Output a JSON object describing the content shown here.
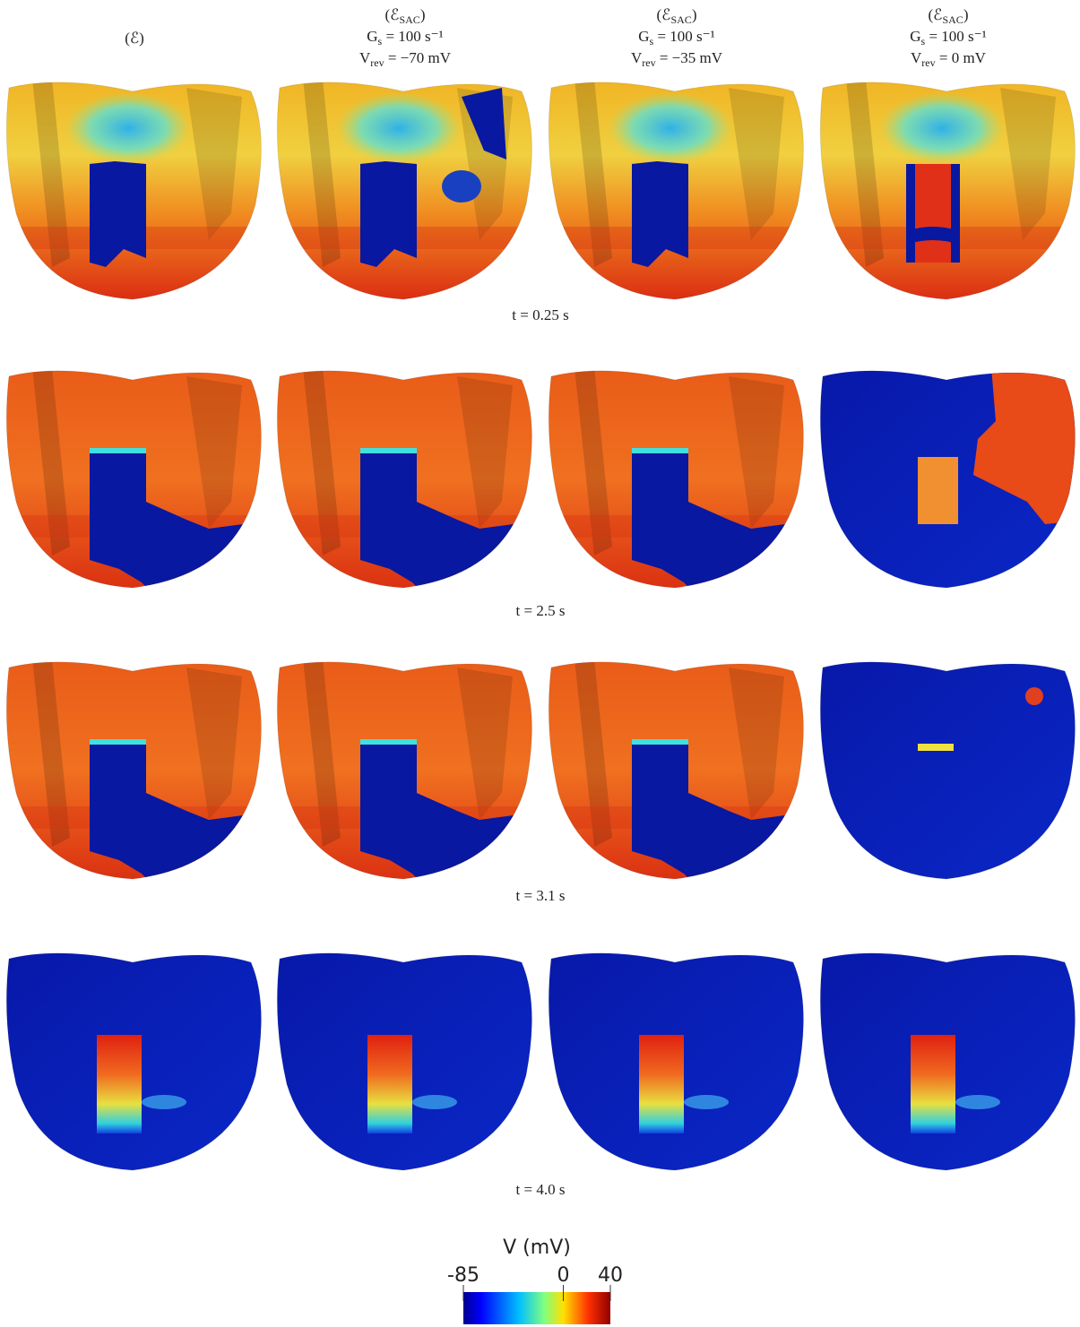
{
  "columns": [
    {
      "lines": [
        {
          "text": "(ℰ)"
        }
      ]
    },
    {
      "lines": [
        {
          "main": "(ℰ",
          "sub": "SAC",
          "tail": ")"
        },
        {
          "main": "G",
          "sub": "s",
          "tail": " = 100 s⁻¹"
        },
        {
          "main": "V",
          "sub": "rev",
          "tail": " = −70 mV"
        }
      ]
    },
    {
      "lines": [
        {
          "main": "(ℰ",
          "sub": "SAC",
          "tail": ")"
        },
        {
          "main": "G",
          "sub": "s",
          "tail": " = 100 s⁻¹"
        },
        {
          "main": "V",
          "sub": "rev",
          "tail": " = −35 mV"
        }
      ]
    },
    {
      "lines": [
        {
          "main": "(ℰ",
          "sub": "SAC",
          "tail": ")"
        },
        {
          "main": "G",
          "sub": "s",
          "tail": " = 100 s⁻¹"
        },
        {
          "main": "V",
          "sub": "rev",
          "tail": " = 0 mV"
        }
      ]
    }
  ],
  "time_labels": [
    "t = 0.25 s",
    "t = 2.5 s",
    "t = 3.1 s",
    "t = 4.0 s"
  ],
  "colorbar": {
    "label": "V (mV)",
    "range": [
      -85,
      40
    ],
    "ticks": [
      -85,
      0,
      40
    ]
  }
}
